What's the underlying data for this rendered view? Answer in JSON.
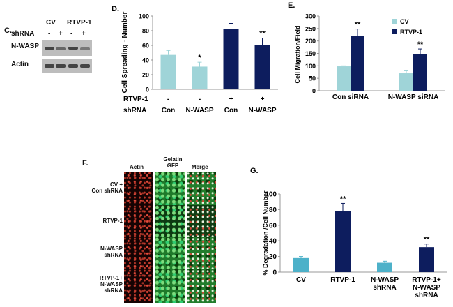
{
  "panels": {
    "C": {
      "letter": "C.",
      "lane_labels": [
        "CV",
        "RTVP-1"
      ],
      "shrna_label": "shRNA",
      "shrna_signs": [
        "-",
        "+",
        "-",
        "+"
      ],
      "rows": [
        "N-WASP",
        "Actin"
      ]
    },
    "F": {
      "letter": "F.",
      "columns": [
        "Actin",
        "Gelatin\nGFP",
        "Merge"
      ],
      "column_lines": [
        [
          "Actin"
        ],
        [
          "Gelatin",
          "GFP"
        ],
        [
          "Merge"
        ]
      ],
      "rows": [
        {
          "lines": [
            "CV +",
            "Con shRNA"
          ]
        },
        {
          "lines": [
            "RTVP-1"
          ]
        },
        {
          "lines": [
            "N-WASP",
            "shRNA"
          ]
        },
        {
          "lines": [
            "RTVP-1+",
            "N-WASP",
            "shRNA"
          ]
        }
      ]
    }
  },
  "colors": {
    "light": "#9fd4d8",
    "dark": "#0d1d5e",
    "teal": "#4db1c9"
  },
  "chart_data": [
    {
      "panel": "D.",
      "type": "bar",
      "categories": [
        "1",
        "2",
        "3",
        "4"
      ],
      "values": [
        47,
        31,
        82,
        60
      ],
      "errors": [
        6,
        6,
        8,
        10
      ],
      "colors": [
        "light",
        "light",
        "dark",
        "dark"
      ],
      "annotations": [
        "",
        "*",
        "",
        "**"
      ],
      "ylabel": "Cell Spreading - Number",
      "ylim": [
        0,
        100
      ],
      "yticks": [
        0,
        20,
        40,
        60,
        80,
        100
      ],
      "row_labels": [
        {
          "label": "RTVP-1",
          "values": [
            "-",
            "-",
            "+",
            "+"
          ]
        },
        {
          "label": "shRNA",
          "values": [
            "Con",
            "N-WASP",
            "Con",
            "N-WASP"
          ]
        }
      ]
    },
    {
      "panel": "E.",
      "type": "bar",
      "categories": [
        "Con siRNA",
        "N-WASP siRNA"
      ],
      "series": [
        {
          "name": "CV",
          "values": [
            98,
            70
          ],
          "errors": [
            2,
            10
          ],
          "annotations": [
            "",
            ""
          ]
        },
        {
          "name": "RTVP-1",
          "values": [
            220,
            148
          ],
          "errors": [
            28,
            20
          ],
          "annotations": [
            "**",
            "**"
          ]
        }
      ],
      "ylabel": "Cell Migration/Field",
      "ylim": [
        0,
        300
      ],
      "yticks": [
        0,
        50,
        100,
        150,
        200,
        250,
        300
      ],
      "legend": "top-right"
    },
    {
      "panel": "G.",
      "type": "bar",
      "categories": [
        "CV",
        "RTVP-1",
        "N-WASP\nshRNA",
        "RTVP-1+\nN-WASP\nshRNA"
      ],
      "values": [
        18,
        78,
        12,
        32
      ],
      "errors": [
        2,
        10,
        2,
        4
      ],
      "colors": [
        "teal",
        "dark",
        "teal",
        "dark"
      ],
      "annotations": [
        "",
        "**",
        "",
        "**"
      ],
      "ylabel": "% Degradation /Cell Number",
      "ylim": [
        0,
        100
      ],
      "yticks": [
        0,
        20,
        40,
        60,
        80,
        100
      ]
    }
  ]
}
